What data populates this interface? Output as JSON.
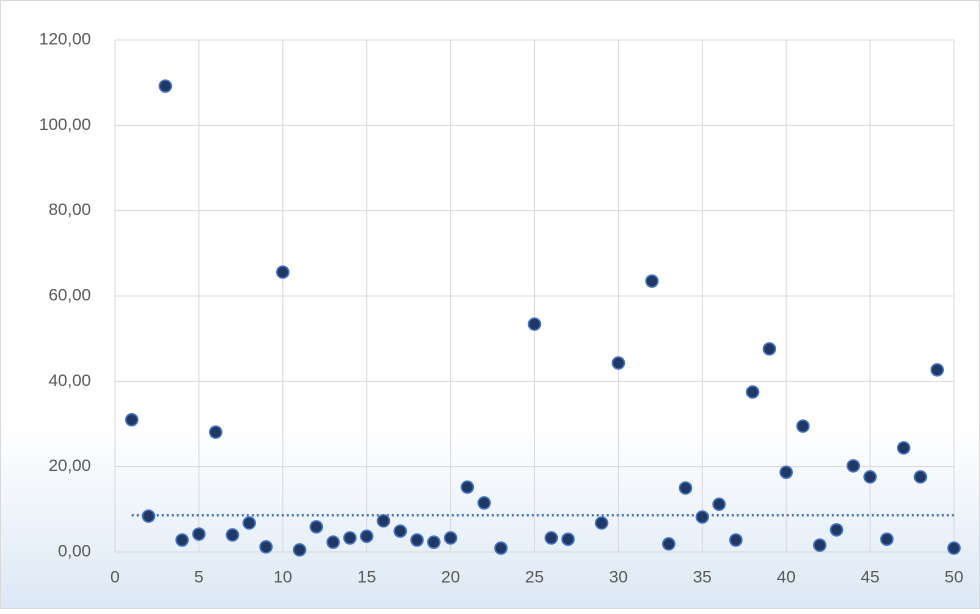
{
  "chart_data": {
    "type": "scatter",
    "x": [
      1,
      2,
      3,
      4,
      5,
      6,
      7,
      8,
      9,
      10,
      11,
      12,
      13,
      14,
      15,
      16,
      17,
      18,
      19,
      20,
      21,
      22,
      23,
      25,
      26,
      27,
      29,
      30,
      32,
      33,
      34,
      35,
      36,
      37,
      38,
      39,
      40,
      41,
      42,
      43,
      44,
      45,
      46,
      47,
      48,
      49,
      50
    ],
    "values": [
      31.0,
      8.4,
      109.2,
      2.8,
      4.2,
      28.1,
      4.0,
      6.8,
      1.2,
      65.6,
      0.5,
      5.9,
      2.3,
      3.3,
      3.7,
      7.3,
      4.9,
      2.8,
      2.3,
      3.3,
      15.2,
      11.5,
      0.9,
      53.4,
      3.3,
      3.0,
      6.8,
      44.3,
      63.5,
      1.9,
      15.0,
      8.2,
      11.2,
      2.8,
      37.5,
      47.6,
      18.7,
      29.5,
      1.6,
      5.2,
      20.2,
      17.6,
      3.0,
      24.4,
      17.6,
      42.7,
      0.9
    ],
    "color": "#1f3864",
    "trendline": {
      "x": [
        1,
        50
      ],
      "values": [
        8.6,
        8.6
      ],
      "color": "#4472c4"
    },
    "xlim": [
      0,
      50
    ],
    "xticks": [
      0,
      5,
      10,
      15,
      20,
      25,
      30,
      35,
      40,
      45,
      50
    ],
    "ylim": [
      0,
      120
    ],
    "yticks": [
      {
        "value": 0,
        "label": "0,00"
      },
      {
        "value": 20,
        "label": "20,00"
      },
      {
        "value": 40,
        "label": "40,00"
      },
      {
        "value": 60,
        "label": "60,00"
      },
      {
        "value": 80,
        "label": "80,00"
      },
      {
        "value": 100,
        "label": "100,00"
      },
      {
        "value": 120,
        "label": "120,00"
      }
    ],
    "grid": true
  }
}
